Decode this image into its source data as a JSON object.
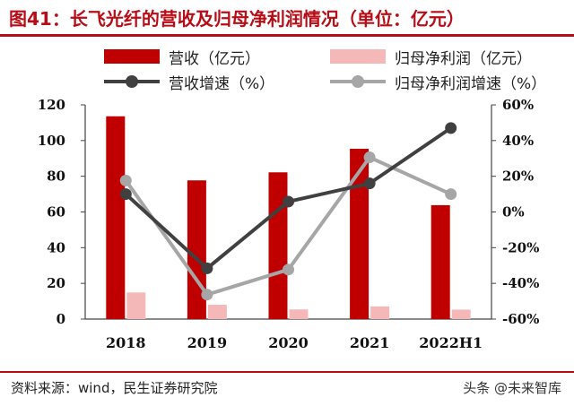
{
  "title": "图41：长飞光纤的营收及归母净利润情况（单位：亿元）",
  "legend": {
    "revenue": "营收（亿元）",
    "net_profit": "归母净利润（亿元）",
    "revenue_growth": "营收增速（%）",
    "profit_growth": "归母净利润增速（%）"
  },
  "source": "资料来源：wind，民生证券研究院",
  "watermark": "头条 @未来智库",
  "colors": {
    "revenue": "#c00000",
    "net_profit": "#f4b8b8",
    "revenue_growth": "#404040",
    "profit_growth": "#a6a6a6",
    "accent": "#b80d16"
  },
  "chart_data": {
    "type": "bar",
    "categories": [
      "2018",
      "2019",
      "2020",
      "2021",
      "2022H1"
    ],
    "series": [
      {
        "name": "营收（亿元）",
        "type": "bar",
        "axis": "left",
        "values": [
          113.6,
          77.7,
          82.2,
          95.4,
          63.8
        ]
      },
      {
        "name": "归母净利润（亿元）",
        "type": "bar",
        "axis": "left",
        "values": [
          14.9,
          8.0,
          5.4,
          7.1,
          5.3
        ]
      },
      {
        "name": "营收增速（%）",
        "type": "line",
        "axis": "right",
        "values": [
          10,
          -31.6,
          5.8,
          16,
          47
        ]
      },
      {
        "name": "归母净利润增速（%）",
        "type": "line",
        "axis": "right",
        "values": [
          17.6,
          -46.3,
          -32.3,
          30.6,
          10
        ]
      }
    ],
    "left_axis": {
      "ylim": [
        0,
        120
      ],
      "ticks": [
        "0",
        "20",
        "40",
        "60",
        "80",
        "100",
        "120"
      ]
    },
    "right_axis": {
      "ylim": [
        -60,
        60
      ],
      "ticks": [
        "-60%",
        "-40%",
        "-20%",
        "0%",
        "20%",
        "40%",
        "60%"
      ]
    },
    "grid": false,
    "legend_position": "top"
  }
}
